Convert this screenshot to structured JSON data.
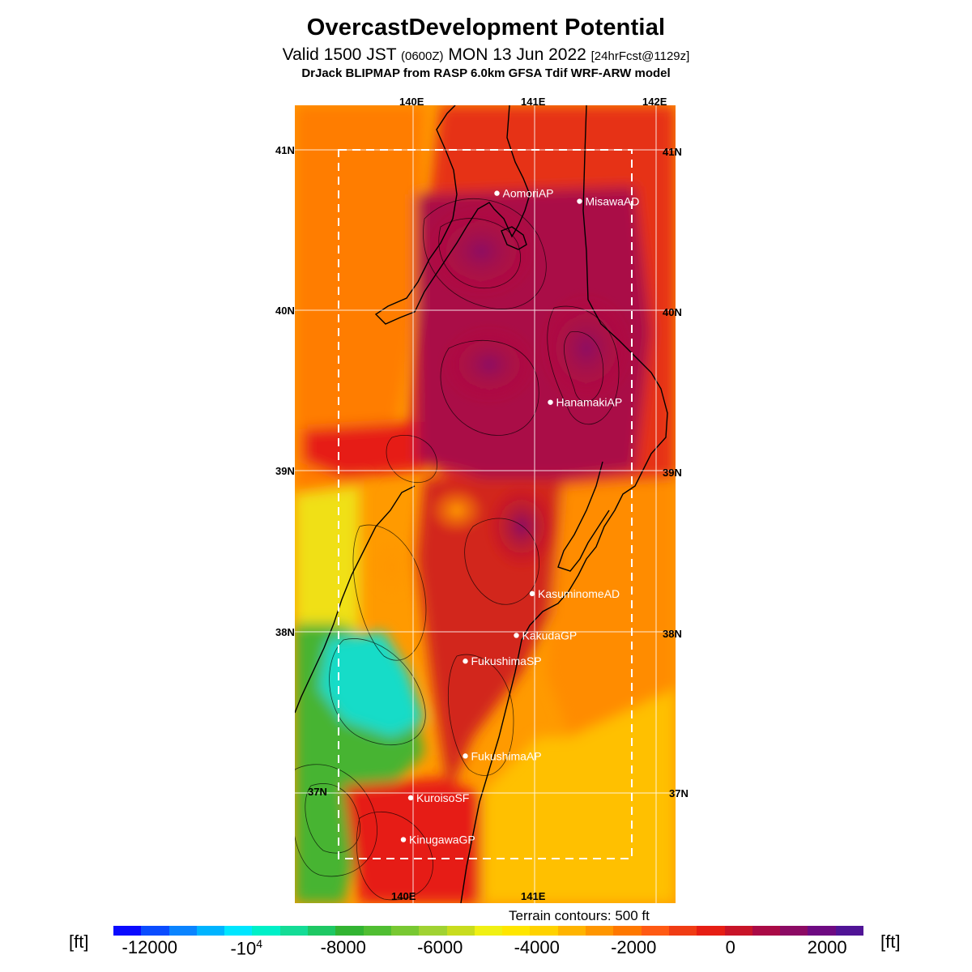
{
  "title": "OvercastDevelopment Potential",
  "subtitle": {
    "valid_a": "Valid 1500 JST ",
    "valid_z": "(0600Z)",
    "valid_b": " MON 13 Jun 2022 ",
    "fcst": "[24hrFcst@1129z]"
  },
  "model_line": "DrJack BLIPMAP from RASP 6.0km GFSA Tdif WRF-ARW model",
  "map": {
    "lon_labels_top": [
      "140E",
      "141E",
      "142E"
    ],
    "lon_labels_bottom": [
      "140E",
      "141E"
    ],
    "lat_labels_left": [
      "41N",
      "40N",
      "39N",
      "38N",
      "37N"
    ],
    "lat_labels_right": [
      "41N",
      "40N",
      "39N",
      "38N",
      "37N"
    ],
    "stations": [
      {
        "name": "AomoriAP",
        "lon": 140.69,
        "lat": 40.73
      },
      {
        "name": "MisawaAD",
        "lon": 141.37,
        "lat": 40.68
      },
      {
        "name": "HanamakiAP",
        "lon": 141.13,
        "lat": 39.43
      },
      {
        "name": "KasuminomeAD",
        "lon": 140.98,
        "lat": 38.24
      },
      {
        "name": "KakudaGP",
        "lon": 140.85,
        "lat": 37.98
      },
      {
        "name": "FukushimaSP",
        "lon": 140.43,
        "lat": 37.82
      },
      {
        "name": "FukushimaAP",
        "lon": 140.43,
        "lat": 37.23
      },
      {
        "name": "KuroisoSF",
        "lon": 139.98,
        "lat": 36.97
      },
      {
        "name": "KinugawaGP",
        "lon": 139.92,
        "lat": 36.71
      }
    ],
    "terrain_note": "Terrain contours: 500 ft"
  },
  "colorbar": {
    "unit": "[ft]",
    "tick_labels": [
      "-12000",
      "-10^4",
      "-8000",
      "-6000",
      "-4000",
      "-2000",
      "0",
      "2000"
    ],
    "colors": [
      "#0a0aff",
      "#0a4cff",
      "#0a84ff",
      "#00b4ff",
      "#00e6ff",
      "#00f0c8",
      "#14dc96",
      "#1ec864",
      "#32b432",
      "#50be32",
      "#78c832",
      "#a0d232",
      "#c8dc1e",
      "#f0f014",
      "#ffe600",
      "#ffd200",
      "#ffb400",
      "#ff9600",
      "#ff7800",
      "#ff5a14",
      "#f03c14",
      "#e61e14",
      "#c81428",
      "#aa0a46",
      "#8c0a64",
      "#6e0a82",
      "#501496"
    ]
  }
}
